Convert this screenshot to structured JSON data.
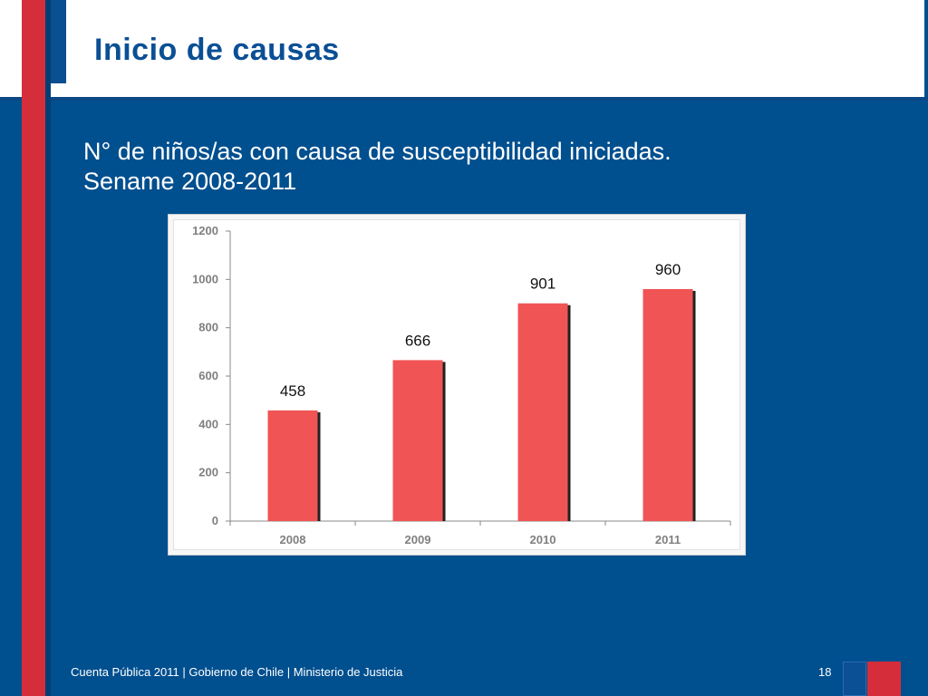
{
  "slide": {
    "title": "Inicio de causas",
    "subtitle_line1": "N° de niños/as con causa de susceptibilidad iniciadas.",
    "subtitle_line2": "Sename 2008-2011",
    "footer": "Cuenta Pública 2011 | Gobierno de Chile | Ministerio  de Justicia",
    "page_number": "18"
  },
  "colors": {
    "background": "#004f8f",
    "title": "#0b4f95",
    "accent_red": "#d62d3a",
    "bar": "#f05454",
    "bar_shadow": "#222222",
    "axis_text": "#7f7f7f"
  },
  "chart_data": {
    "type": "bar",
    "categories": [
      "2008",
      "2009",
      "2010",
      "2011"
    ],
    "values": [
      458,
      666,
      901,
      960
    ],
    "data_labels": [
      "458",
      "666",
      "901",
      "960"
    ],
    "ylim": [
      0,
      1200
    ],
    "yticks": [
      "0",
      "200",
      "400",
      "600",
      "800",
      "1000",
      "1200"
    ],
    "grid": false,
    "legend": "none"
  }
}
